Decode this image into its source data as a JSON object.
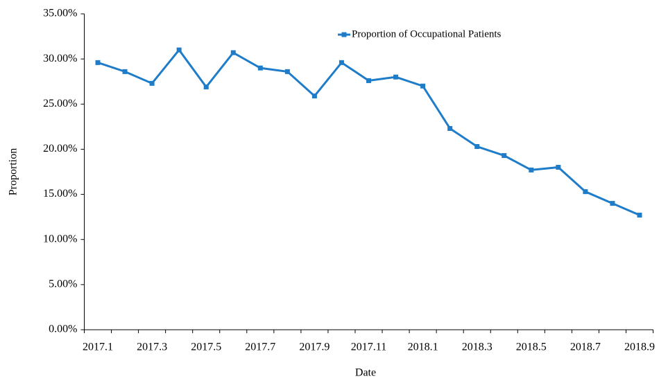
{
  "chart_data": {
    "type": "line",
    "x_label": "Date",
    "y_label": "Proportion",
    "categories": [
      "2017.1",
      null,
      "2017.3",
      null,
      "2017.5",
      null,
      "2017.7",
      null,
      "2017.9",
      null,
      "2017.11",
      null,
      "2018.1",
      null,
      "2018.3",
      null,
      "2018.5",
      null,
      "2018.7",
      null,
      "2018.9"
    ],
    "series": [
      {
        "name": "Proportion of Occupational Patients",
        "color": "#1f7cc8",
        "values": [
          29.6,
          28.6,
          27.3,
          31.0,
          26.9,
          30.7,
          29.0,
          28.6,
          25.9,
          29.6,
          27.6,
          28.0,
          27.0,
          22.3,
          20.3,
          19.3,
          17.7,
          18.0,
          15.3,
          14.0,
          12.7
        ]
      }
    ],
    "ylim": [
      0,
      35
    ],
    "yticks": [
      {
        "value": 0,
        "label": "0.00%"
      },
      {
        "value": 5,
        "label": "5.00%"
      },
      {
        "value": 10,
        "label": "10.00%"
      },
      {
        "value": 15,
        "label": "15.00%"
      },
      {
        "value": 20,
        "label": "20.00%"
      },
      {
        "value": 25,
        "label": "25.00%"
      },
      {
        "value": 30,
        "label": "30.00%"
      },
      {
        "value": 35,
        "label": "35.00%"
      }
    ],
    "grid": false
  }
}
